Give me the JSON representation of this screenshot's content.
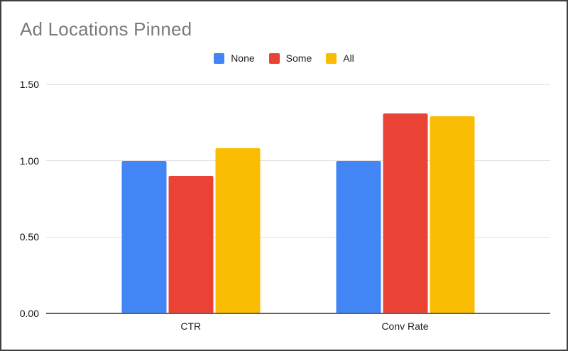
{
  "chart_data": {
    "type": "bar",
    "title": "Ad Locations Pinned",
    "categories": [
      "CTR",
      "Conv Rate"
    ],
    "series": [
      {
        "name": "None",
        "color": "#4285F4",
        "values": [
          1.0,
          1.0
        ]
      },
      {
        "name": "Some",
        "color": "#EA4335",
        "values": [
          0.9,
          1.31
        ]
      },
      {
        "name": "All",
        "color": "#FBBC04",
        "values": [
          1.08,
          1.29
        ]
      }
    ],
    "xlabel": "",
    "ylabel": "",
    "ylim": [
      0,
      1.5
    ],
    "ytick_values": [
      0,
      0.5,
      1.0,
      1.5
    ],
    "ytick_labels": [
      "0.00",
      "0.50",
      "1.00",
      "1.50"
    ],
    "grid": true,
    "legend_position": "top",
    "colors": {
      "title_text": "#7a7a7a",
      "axis_label_text": "#111111",
      "category_label_text": "#202124",
      "gridline": "#e0e0e0",
      "baseline": "#616161",
      "background": "#ffffff",
      "frame_border": "#3f3f3f"
    }
  }
}
